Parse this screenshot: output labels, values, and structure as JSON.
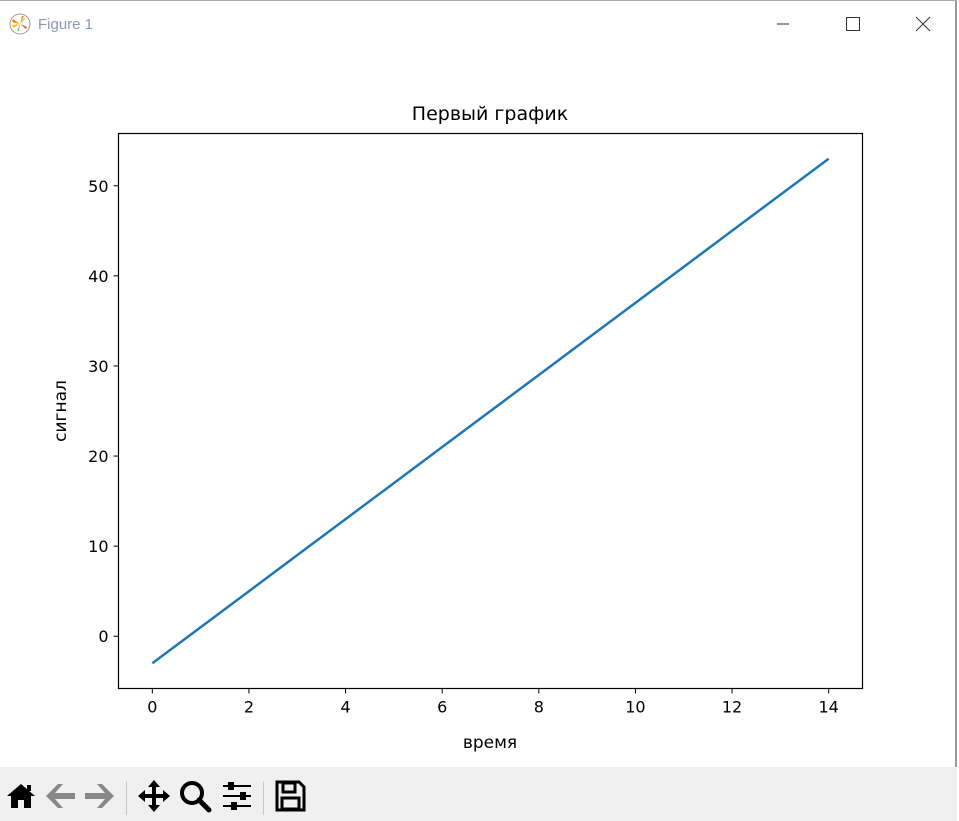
{
  "window": {
    "title": "Figure 1",
    "controls": [
      "minimize",
      "maximize",
      "close"
    ]
  },
  "toolbar": {
    "buttons": [
      {
        "icon": "home-icon"
      },
      {
        "icon": "back-arrow-icon"
      },
      {
        "icon": "forward-arrow-icon"
      },
      {
        "icon": "pan-icon"
      },
      {
        "icon": "zoom-icon"
      },
      {
        "icon": "configure-subplots-icon"
      },
      {
        "icon": "save-icon"
      }
    ]
  },
  "chart_data": {
    "type": "line",
    "title": "Первый график",
    "xlabel": "время",
    "ylabel": "сигнал",
    "x": [
      0,
      1,
      2,
      3,
      4,
      5,
      6,
      7,
      8,
      9,
      10,
      11,
      12,
      13,
      14
    ],
    "series": [
      {
        "values": [
          -3,
          1,
          5,
          9,
          13,
          17,
          21,
          25,
          29,
          33,
          37,
          41,
          45,
          49,
          53
        ],
        "color": "#1f77b4"
      }
    ],
    "xlim": [
      -0.7,
      14.7
    ],
    "ylim": [
      -5.8,
      55.8
    ],
    "xticks": [
      "0",
      "2",
      "4",
      "6",
      "8",
      "10",
      "12",
      "14"
    ],
    "yticks": [
      "0",
      "10",
      "20",
      "30",
      "40",
      "50"
    ],
    "grid": false
  }
}
